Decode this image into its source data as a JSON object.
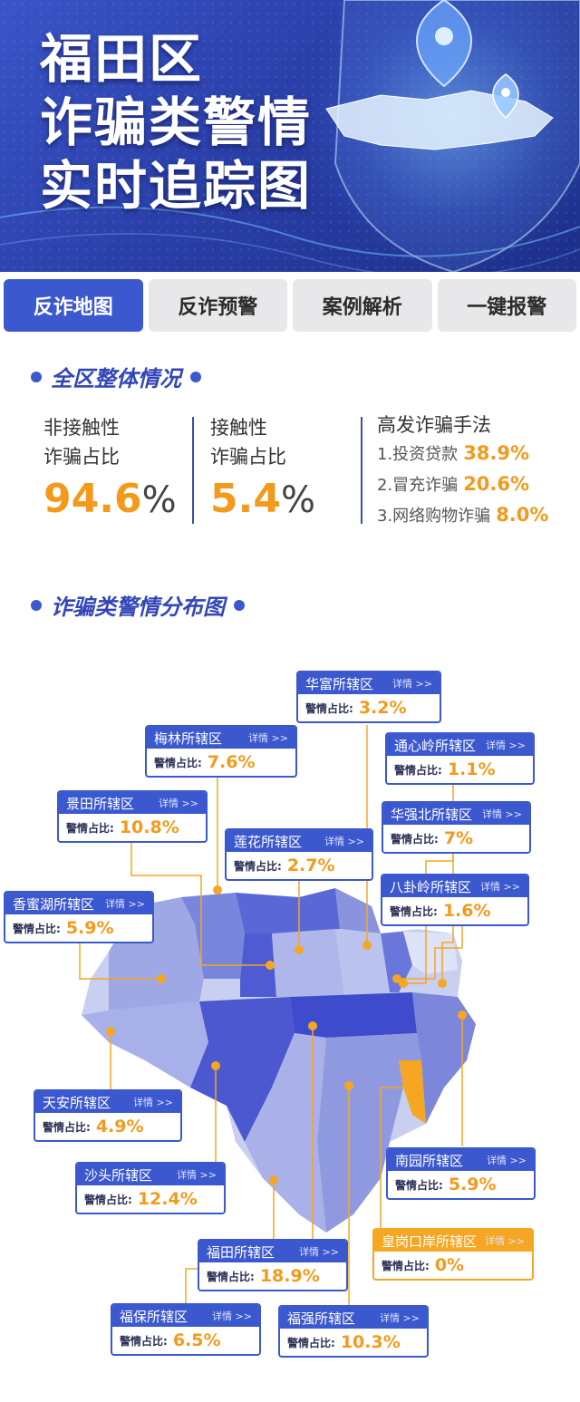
{
  "banner": {
    "title_lines": [
      "福田区",
      "诈骗类警情",
      "实时追踪图"
    ]
  },
  "tabs": [
    {
      "label": "反诈地图",
      "active": true
    },
    {
      "label": "反诈预警",
      "active": false
    },
    {
      "label": "案例解析",
      "active": false
    },
    {
      "label": "一键报警",
      "active": false
    }
  ],
  "overview": {
    "title": "全区整体情况",
    "non_contact": {
      "line1": "非接触性",
      "line2": "诈骗占比",
      "value": "94.6",
      "unit": "%"
    },
    "contact": {
      "line1": "接触性",
      "line2": "诈骗占比",
      "value": "5.4",
      "unit": "%"
    },
    "methods": {
      "title": "高发诈骗手法",
      "items": [
        {
          "label": "1.投资贷款",
          "value": "38.9%"
        },
        {
          "label": "2.冒充诈骗",
          "value": "20.6%"
        },
        {
          "label": "3.网络购物诈骗",
          "value": "8.0%"
        }
      ]
    }
  },
  "distribution": {
    "title": "诈骗类警情分布图",
    "detail_label": "详情 >>",
    "ratio_label": "警情占比:",
    "districts": [
      {
        "name": "华富所辖区",
        "ratio": "3.2%",
        "percent": 3.2
      },
      {
        "name": "通心岭所辖区",
        "ratio": "1.1%",
        "percent": 1.1
      },
      {
        "name": "梅林所辖区",
        "ratio": "7.6%",
        "percent": 7.6
      },
      {
        "name": "华强北所辖区",
        "ratio": "7%",
        "percent": 7
      },
      {
        "name": "景田所辖区",
        "ratio": "10.8%",
        "percent": 10.8
      },
      {
        "name": "莲花所辖区",
        "ratio": "2.7%",
        "percent": 2.7
      },
      {
        "name": "八卦岭所辖区",
        "ratio": "1.6%",
        "percent": 1.6
      },
      {
        "name": "香蜜湖所辖区",
        "ratio": "5.9%",
        "percent": 5.9
      },
      {
        "name": "天安所辖区",
        "ratio": "4.9%",
        "percent": 4.9
      },
      {
        "name": "沙头所辖区",
        "ratio": "12.4%",
        "percent": 12.4
      },
      {
        "name": "南园所辖区",
        "ratio": "5.9%",
        "percent": 5.9
      },
      {
        "name": "皇岗口岸所辖区",
        "ratio": "0%",
        "percent": 0
      },
      {
        "name": "福田所辖区",
        "ratio": "18.9%",
        "percent": 18.9
      },
      {
        "name": "福保所辖区",
        "ratio": "6.5%",
        "percent": 6.5
      },
      {
        "name": "福强所辖区",
        "ratio": "10.3%",
        "percent": 10.3
      }
    ]
  },
  "colors": {
    "primary": "#3b58cf",
    "accent": "#f39a1c",
    "highlight": "#f5a623"
  }
}
